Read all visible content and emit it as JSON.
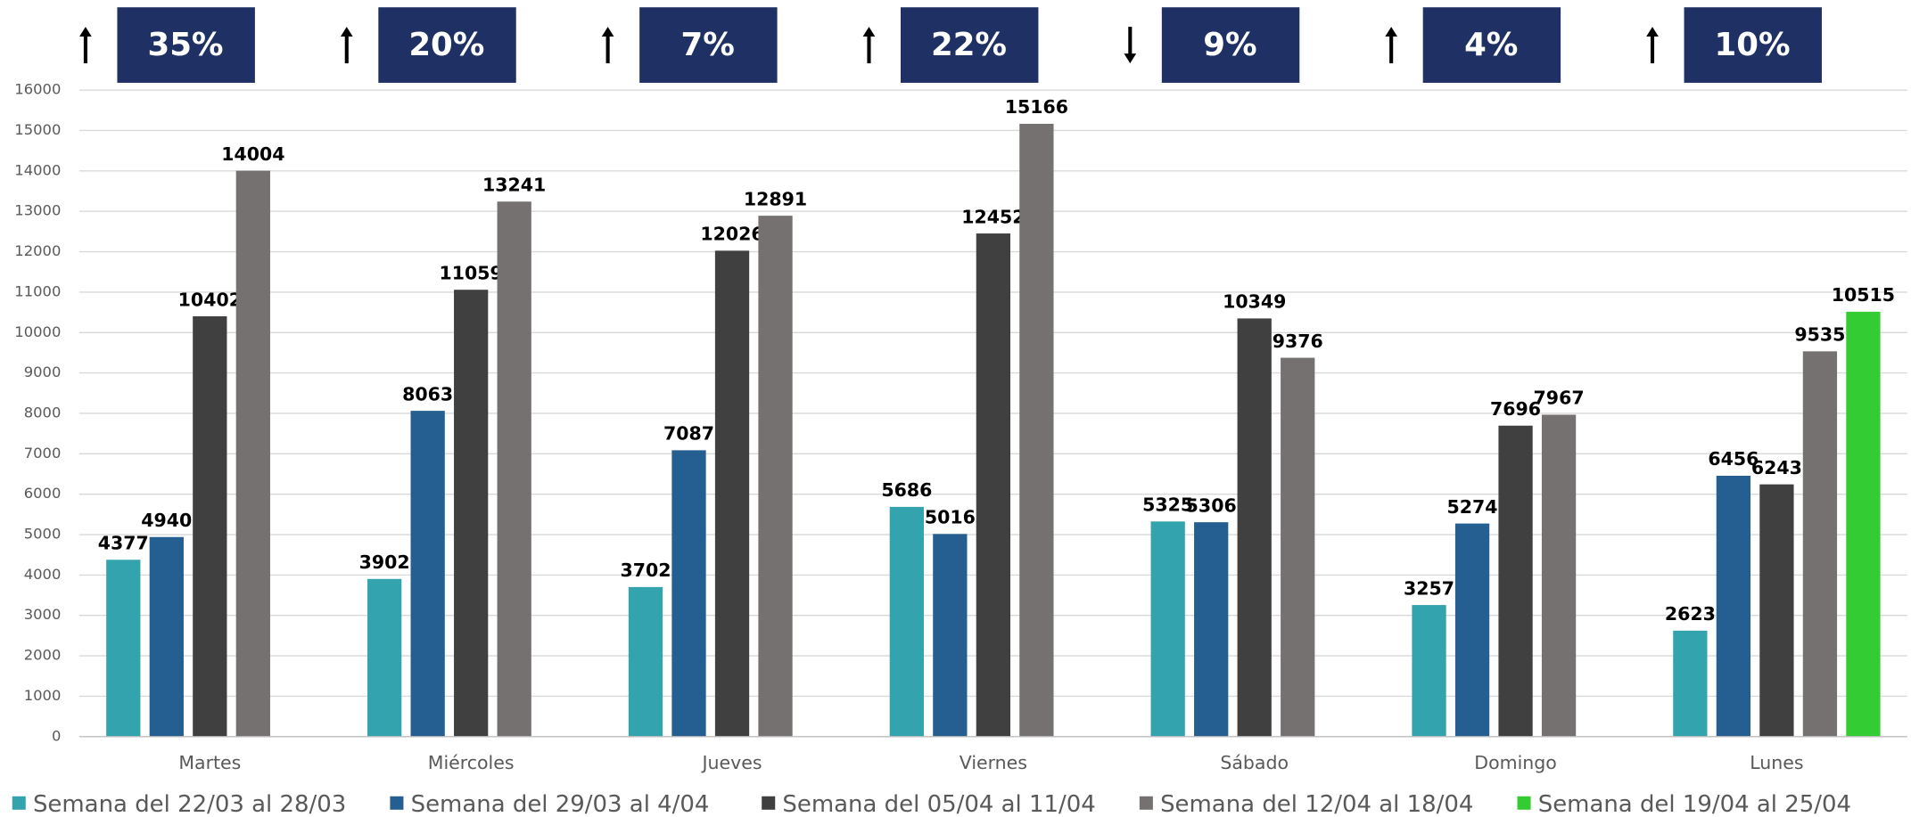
{
  "chart_data": {
    "type": "bar",
    "categories": [
      "Martes",
      "Miércoles",
      "Jueves",
      "Viernes",
      "Sábado",
      "Domingo",
      "Lunes"
    ],
    "series": [
      {
        "name": "Semana del 22/03 al 28/03",
        "color": "#33a3ad",
        "values": [
          4377,
          3902,
          3702,
          5686,
          5325,
          3257,
          2623
        ]
      },
      {
        "name": "Semana del 29/03 al 4/04",
        "color": "#255f91",
        "values": [
          4940,
          8063,
          7087,
          5016,
          5306,
          5274,
          6456
        ]
      },
      {
        "name": "Semana del 05/04 al 11/04",
        "color": "#404040",
        "values": [
          10402,
          11059,
          12026,
          12452,
          10349,
          7696,
          6243
        ]
      },
      {
        "name": "Semana del 12/04 al 18/04",
        "color": "#767171",
        "values": [
          14004,
          13241,
          12891,
          15166,
          9376,
          7967,
          9535
        ]
      },
      {
        "name": "Semana del 19/04 al 25/04",
        "color": "#33cc33",
        "values": [
          null,
          null,
          null,
          null,
          null,
          null,
          10515
        ]
      }
    ],
    "ylim": [
      0,
      16000
    ],
    "yticks": [
      0,
      1000,
      2000,
      3000,
      4000,
      5000,
      6000,
      7000,
      8000,
      9000,
      10000,
      11000,
      12000,
      13000,
      14000,
      15000,
      16000
    ],
    "grid": true,
    "legend": "bottom",
    "highlight_point": [
      3,
      3
    ],
    "highlight_color": "#c00000",
    "change_labels": [
      "35%",
      "20%",
      "7%",
      "22%",
      "9%",
      "4%",
      "10%"
    ],
    "change_directions": [
      "up",
      "up",
      "up",
      "up",
      "down",
      "up",
      "up"
    ]
  }
}
